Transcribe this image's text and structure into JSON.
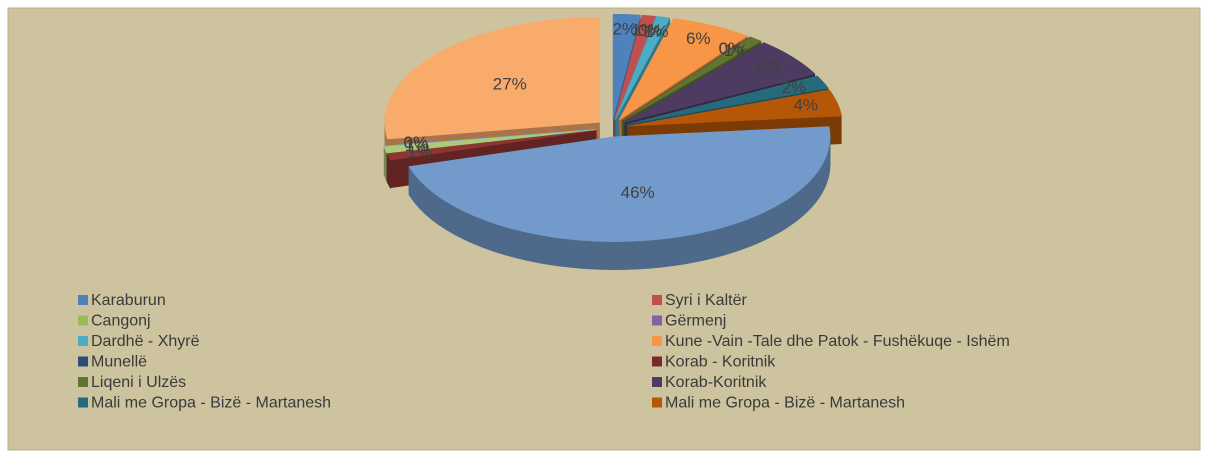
{
  "chart_data": {
    "type": "pie",
    "categories": [
      "Karaburun",
      "Syri i Kaltër",
      "Cangonj",
      "Gërmenj",
      "Dardhë - Xhyrë",
      "Kune -Vain -Tale dhe Patok - Fushëkuqe - Ishëm",
      "Munellë",
      "Korab - Koritnik",
      "Liqeni i Ulzës",
      "Korab-Koritnik",
      "Mali me Gropa - Bizë - Martanesh",
      "Mali me Gropa - Bizë - Martanesh",
      null,
      null,
      null,
      null,
      null,
      null
    ],
    "values": [
      2,
      1,
      0,
      0,
      1,
      6,
      0,
      0,
      1,
      6,
      2,
      4,
      46,
      1,
      1,
      0,
      0,
      27
    ],
    "value_labels": [
      "2%",
      "1%",
      "0%",
      "0%",
      "1%",
      "6%",
      "0%",
      "0%",
      "1%",
      "6%",
      "2%",
      "4%",
      "46%",
      "1%",
      "1%",
      "0%",
      "0%",
      "27%"
    ],
    "colors": [
      "#4f81bd",
      "#c0504d",
      "#9bbb59",
      "#8064a2",
      "#4bacc6",
      "#f79646",
      "#2c4d75",
      "#772c2a",
      "#5f7530",
      "#4d3b62",
      "#276a7c",
      "#b65708",
      "#729aca",
      "#8e3533",
      "#afc97a",
      "#9983b5",
      "#6fbdd1",
      "#f9ab6b"
    ],
    "legend": "bottom"
  }
}
